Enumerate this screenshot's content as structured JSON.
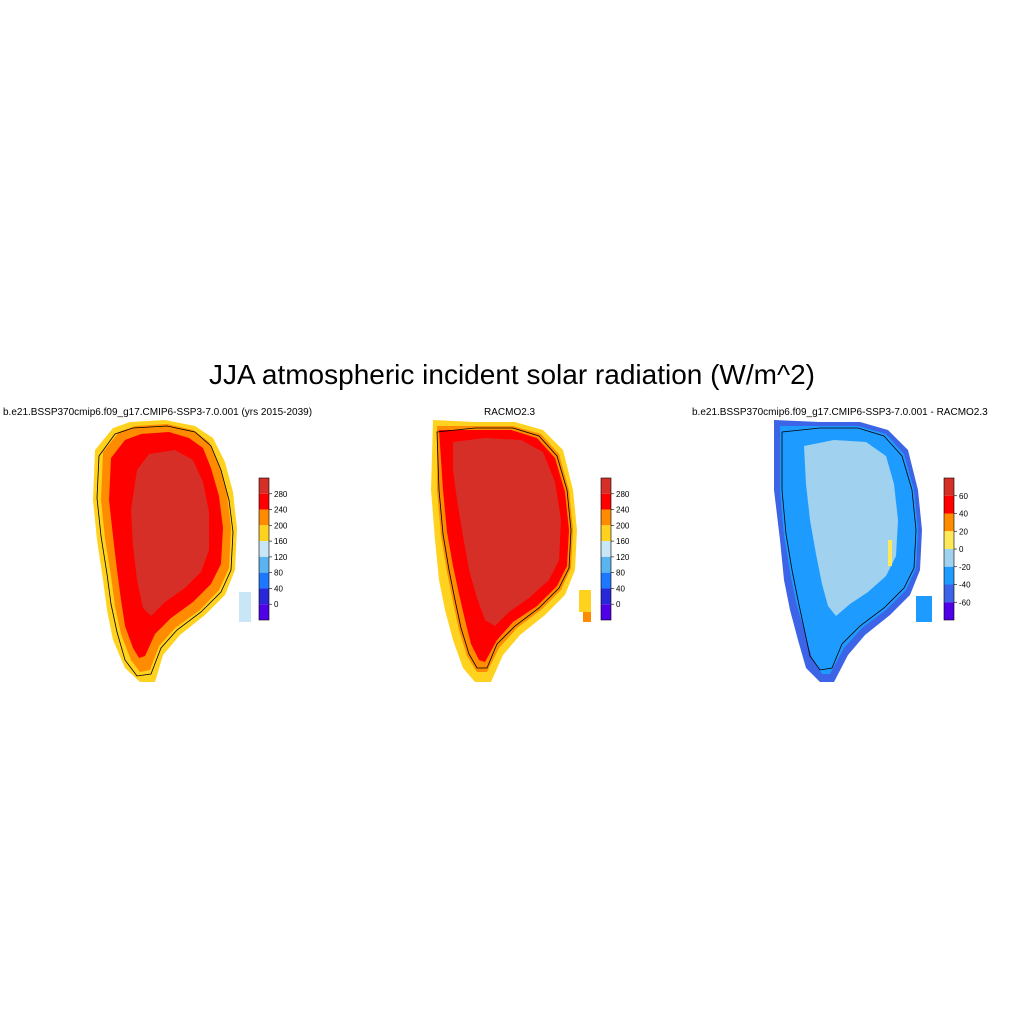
{
  "title": "JJA atmospheric incident solar radiation (W/m^2)",
  "panels": [
    {
      "title": "b.e21.BSSP370cmip6.f09_g17.CMIP6-SSP3-7.0.001 (yrs 2015-2039)",
      "colorbar": {
        "labels": [
          "280",
          "240",
          "200",
          "160",
          "120",
          "80",
          "40",
          "0"
        ],
        "colors": [
          "#d62f27",
          "#ff0000",
          "#ff8c00",
          "#ffd21f",
          "#c8e6f5",
          "#5ab4f0",
          "#1e78ff",
          "#2828d8",
          "#5000e6"
        ]
      }
    },
    {
      "title": "RACMO2.3",
      "colorbar": {
        "labels": [
          "280",
          "240",
          "200",
          "160",
          "120",
          "80",
          "40",
          "0"
        ],
        "colors": [
          "#d62f27",
          "#ff0000",
          "#ff8c00",
          "#ffd21f",
          "#c8e6f5",
          "#5ab4f0",
          "#1e78ff",
          "#2828d8",
          "#5000e6"
        ]
      }
    },
    {
      "title": "b.e21.BSSP370cmip6.f09_g17.CMIP6-SSP3-7.0.001 - RACMO2.3",
      "colorbar": {
        "labels": [
          "60",
          "40",
          "20",
          "0",
          "-20",
          "-40",
          "-60"
        ],
        "colors": [
          "#d62f27",
          "#ff0000",
          "#ff8c00",
          "#ffe85a",
          "#a0d2f0",
          "#1e9bff",
          "#3c64e6",
          "#5000e6"
        ]
      }
    }
  ]
}
